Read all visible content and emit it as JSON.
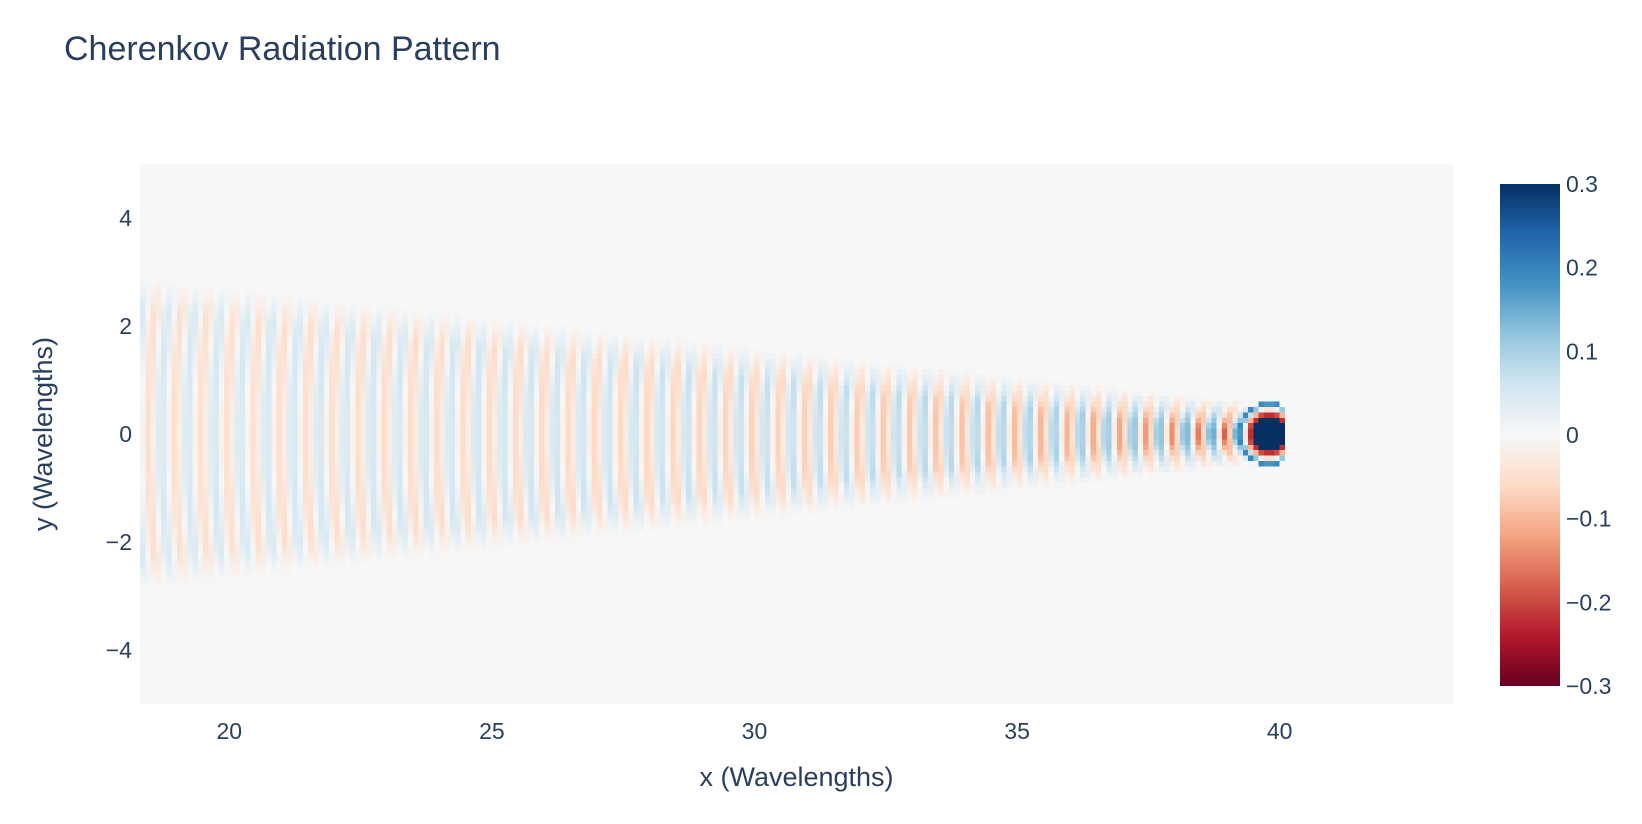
{
  "chart_data": {
    "type": "heatmap",
    "title": "Cherenkov Radiation Pattern",
    "xlabel": "x (Wavelengths)",
    "ylabel": "y (Wavelengths)",
    "xlim": [
      18.3,
      43.3
    ],
    "ylim": [
      -5,
      5
    ],
    "x_ticks": [
      20,
      25,
      30,
      35,
      40
    ],
    "x_tick_labels": [
      "20",
      "25",
      "30",
      "35",
      "40"
    ],
    "y_ticks": [
      4,
      2,
      0,
      -2,
      -4
    ],
    "y_tick_labels": [
      "4",
      "2",
      "0",
      "−2",
      "−4"
    ],
    "colorscale": "RdBu",
    "zlim": [
      -0.3,
      0.3
    ],
    "colorbar_ticks": [
      0.3,
      0.2,
      0.1,
      0,
      -0.1,
      -0.2,
      -0.3
    ],
    "colorbar_tick_labels": [
      "0.3",
      "0.2",
      "0.1",
      "0",
      "−0.1",
      "−0.2",
      "−0.3"
    ],
    "colorscale_stops": [
      [
        0.0,
        "#67001f"
      ],
      [
        0.1,
        "#b2182b"
      ],
      [
        0.2,
        "#d6604d"
      ],
      [
        0.3,
        "#f4a582"
      ],
      [
        0.4,
        "#fddbc7"
      ],
      [
        0.5,
        "#f7f7f7"
      ],
      [
        0.6,
        "#d1e5f0"
      ],
      [
        0.7,
        "#92c5de"
      ],
      [
        0.8,
        "#4393c3"
      ],
      [
        0.9,
        "#2166ac"
      ],
      [
        1.0,
        "#053061"
      ]
    ],
    "source_x": 39.8,
    "source_y": 0,
    "ring_spacing": 0.5,
    "grid": false,
    "legend": "none"
  }
}
